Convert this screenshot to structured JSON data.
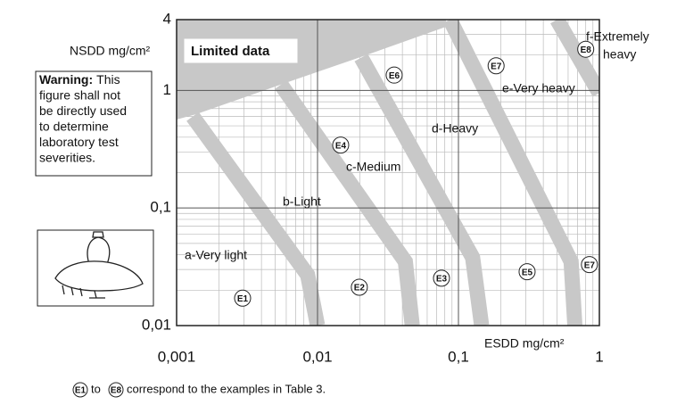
{
  "chart_data": {
    "type": "line",
    "x_label": "ESDD mg/cm²",
    "y_label": "NSDD mg/cm²",
    "xlog": true,
    "ylog": true,
    "grid": true,
    "minor_grid": true,
    "xlim": [
      0.001,
      1
    ],
    "ylim": [
      0.01,
      4
    ],
    "xticks": [
      {
        "value": 0.001,
        "label": "0,001"
      },
      {
        "value": 0.01,
        "label": "0,01"
      },
      {
        "value": 0.1,
        "label": "0,1"
      },
      1
    ],
    "yticks": [
      {
        "value": 0.01,
        "label": "0,01"
      },
      {
        "value": 0.1,
        "label": "0,1"
      },
      1,
      4
    ],
    "band_color": "#c8c8c8",
    "series": [
      {
        "x": [
          0.0013,
          0.0085,
          0.01
        ],
        "y": [
          0.6,
          0.027,
          0.01
        ]
      },
      {
        "x": [
          0.0055,
          0.042,
          0.047
        ],
        "y": [
          1.12,
          0.035,
          0.01
        ]
      },
      {
        "x": [
          0.0204,
          0.126,
          0.146
        ],
        "y": [
          1.9,
          0.038,
          0.01
        ]
      },
      {
        "x": [
          0.087,
          0.63,
          0.67
        ],
        "y": [
          4,
          0.035,
          0.01
        ]
      },
      {
        "x": [
          0.5,
          1
        ],
        "y": [
          4,
          0.95
        ]
      }
    ],
    "points": {
      "labels": [
        "E1",
        "E2",
        "E3",
        "E5",
        "E7",
        "E4",
        "E6",
        "E7",
        "E8"
      ],
      "x": [
        0.00294,
        0.0198,
        0.0758,
        0.307,
        0.85,
        0.0146,
        0.035,
        0.185,
        0.8
      ],
      "y": [
        0.0171,
        0.0212,
        0.0253,
        0.0287,
        0.033,
        0.343,
        1.35,
        1.62,
        2.24
      ]
    },
    "annotations": [
      "Limited data",
      "a-Very light",
      "b-Light",
      "c-Medium",
      "d-Heavy",
      "e-Very heavy",
      "f-Extremely",
      "heavy"
    ],
    "warning": {
      "title": "Warning:",
      "lines": [
        "This",
        "figure shall not",
        "be directly used",
        "to determine",
        "laboratory test",
        "severities."
      ]
    },
    "footnote": {
      "from": "E1",
      "to_word": "to",
      "to": "E8",
      "text": "correspond to the examples in Table 3."
    }
  }
}
